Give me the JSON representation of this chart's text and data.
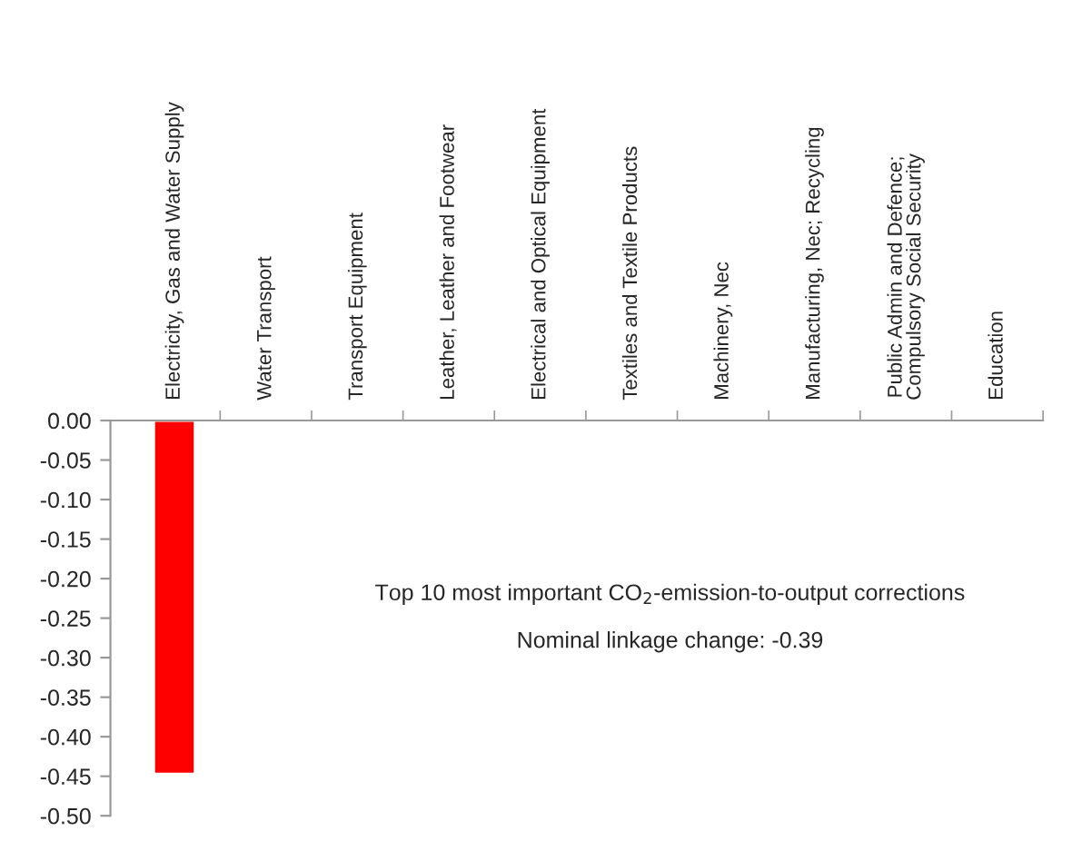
{
  "chart_data": {
    "type": "bar",
    "categories": [
      "Electricity, Gas and Water Supply",
      "Water Transport",
      "Transport Equipment",
      "Leather, Leather and Footwear",
      "Electrical and Optical Equipment",
      "Textiles and Textile Products",
      "Machinery, Nec",
      "Manufacturing, Nec; Recycling",
      "Public Admin and Defence;\nCompulsory Social Security",
      "Education"
    ],
    "values": [
      -0.447,
      -0.002,
      -0.002,
      -0.002,
      -0.002,
      -0.002,
      -0.002,
      -0.002,
      -0.002,
      -0.002
    ],
    "colors": [
      "#ff0000",
      "#333333",
      "#333333",
      "#333333",
      "#333333",
      "#333333",
      "#333333",
      "#333333",
      "#333333",
      "#333333"
    ],
    "ylim": [
      -0.5,
      0
    ],
    "yticks": [
      {
        "value": 0,
        "label": "0.00"
      },
      {
        "value": -0.05,
        "label": "-0.05"
      },
      {
        "value": -0.1,
        "label": "-0.10"
      },
      {
        "value": -0.15,
        "label": "-0.15"
      },
      {
        "value": -0.2,
        "label": "-0.20"
      },
      {
        "value": -0.25,
        "label": "-0.25"
      },
      {
        "value": -0.3,
        "label": "-0.30"
      },
      {
        "value": -0.35,
        "label": "-0.35"
      },
      {
        "value": -0.4,
        "label": "-0.40"
      },
      {
        "value": -0.45,
        "label": "-0.45"
      },
      {
        "value": -0.5,
        "label": "-0.50"
      }
    ],
    "annotations": [
      "Top 10 most important CO$_{2}$-emission-to-output corrections",
      "Nominal linkage change: -0.39"
    ],
    "grid": false,
    "legend": false
  }
}
